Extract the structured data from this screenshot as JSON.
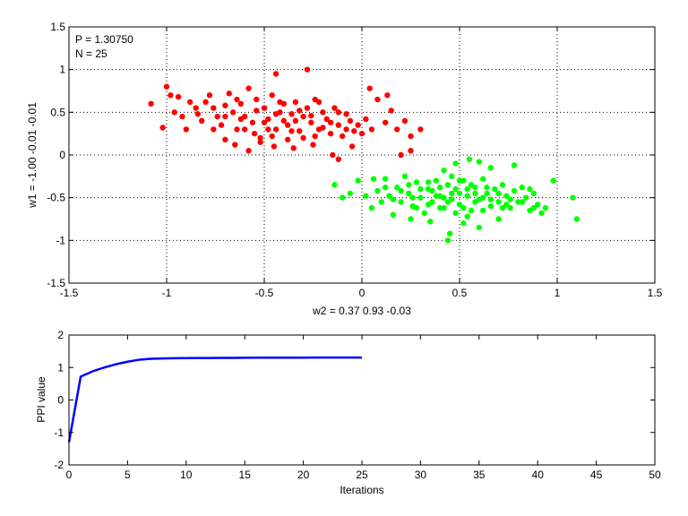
{
  "chart_data": [
    {
      "type": "scatter",
      "xlabel": "w2 = 0.37  0.93  -0.03",
      "ylabel": "w1 = -1.00  -0.01  -0.01",
      "xlim": [
        -1.5,
        1.5
      ],
      "ylim": [
        -1.5,
        1.5
      ],
      "xticks": [
        -1.5,
        -1,
        -0.5,
        0,
        0.5,
        1,
        1.5
      ],
      "yticks": [
        -1.5,
        -1,
        -0.5,
        0,
        0.5,
        1,
        1.5
      ],
      "xtick_labels": [
        "-1.5",
        "-1",
        "-0.5",
        "0",
        "0.5",
        "1",
        "1.5"
      ],
      "ytick_labels": [
        "-1.5",
        "-1",
        "-0.5",
        "0",
        "0.5",
        "1",
        "1.5"
      ],
      "grid": "dotted",
      "annotations": [
        "P = 1.30750",
        "N = 25"
      ],
      "series": [
        {
          "color": "#ff0000",
          "marker": "filled-circle",
          "points": [
            [
              -1.08,
              0.6
            ],
            [
              -1.02,
              0.32
            ],
            [
              -1.0,
              0.8
            ],
            [
              -0.98,
              0.7
            ],
            [
              -0.96,
              0.5
            ],
            [
              -0.94,
              0.68
            ],
            [
              -0.92,
              0.45
            ],
            [
              -0.9,
              0.3
            ],
            [
              -0.88,
              0.62
            ],
            [
              -0.85,
              0.55
            ],
            [
              -0.82,
              0.4
            ],
            [
              -0.8,
              0.62
            ],
            [
              -0.78,
              0.7
            ],
            [
              -0.76,
              0.55
            ],
            [
              -0.74,
              0.45
            ],
            [
              -0.72,
              0.35
            ],
            [
              -0.7,
              0.58
            ],
            [
              -0.68,
              0.72
            ],
            [
              -0.66,
              0.5
            ],
            [
              -0.64,
              0.3
            ],
            [
              -0.62,
              0.6
            ],
            [
              -0.6,
              0.45
            ],
            [
              -0.58,
              0.78
            ],
            [
              -0.56,
              0.38
            ],
            [
              -0.54,
              0.65
            ],
            [
              -0.52,
              0.2
            ],
            [
              -0.5,
              0.55
            ],
            [
              -0.48,
              0.42
            ],
            [
              -0.46,
              0.7
            ],
            [
              -0.44,
              0.3
            ],
            [
              -0.42,
              0.5
            ],
            [
              -0.4,
              0.6
            ],
            [
              -0.38,
              0.35
            ],
            [
              -0.36,
              0.48
            ],
            [
              -0.34,
              0.62
            ],
            [
              -0.32,
              0.28
            ],
            [
              -0.3,
              0.45
            ],
            [
              -0.28,
              0.55
            ],
            [
              -0.26,
              0.38
            ],
            [
              -0.24,
              0.65
            ],
            [
              -0.22,
              0.3
            ],
            [
              -0.2,
              0.5
            ],
            [
              -0.18,
              0.42
            ],
            [
              -0.16,
              0.25
            ],
            [
              -0.14,
              0.55
            ],
            [
              -0.12,
              0.35
            ],
            [
              -0.1,
              0.22
            ],
            [
              -0.08,
              0.48
            ],
            [
              -0.06,
              0.4
            ],
            [
              -0.04,
              0.28
            ],
            [
              -0.02,
              0.35
            ],
            [
              0.0,
              0.25
            ],
            [
              0.02,
              0.42
            ],
            [
              0.05,
              0.3
            ],
            [
              0.08,
              0.65
            ],
            [
              0.12,
              0.38
            ],
            [
              0.15,
              0.52
            ],
            [
              0.18,
              0.3
            ],
            [
              0.22,
              0.4
            ],
            [
              0.25,
              0.22
            ],
            [
              0.3,
              0.3
            ],
            [
              -0.65,
              0.12
            ],
            [
              -0.58,
              0.05
            ],
            [
              -0.52,
              0.15
            ],
            [
              -0.45,
              0.1
            ],
            [
              -0.35,
              0.08
            ],
            [
              -0.25,
              0.12
            ],
            [
              -0.15,
              0.0
            ],
            [
              -0.05,
              0.1
            ],
            [
              -0.44,
              0.95
            ],
            [
              -0.28,
              1.0
            ],
            [
              -0.7,
              0.18
            ],
            [
              0.04,
              0.78
            ],
            [
              0.13,
              0.7
            ],
            [
              0.25,
              0.05
            ],
            [
              0.2,
              0.0
            ],
            [
              -0.55,
              0.25
            ],
            [
              -0.48,
              0.3
            ],
            [
              -0.62,
              0.42
            ],
            [
              -0.4,
              0.4
            ],
            [
              -0.32,
              0.52
            ],
            [
              -0.2,
              0.32
            ],
            [
              -0.3,
              0.2
            ],
            [
              -0.5,
              0.38
            ],
            [
              -0.36,
              0.28
            ],
            [
              -0.44,
              0.48
            ],
            [
              -0.26,
              0.46
            ],
            [
              -0.16,
              0.38
            ],
            [
              -0.84,
              0.48
            ],
            [
              -0.76,
              0.3
            ],
            [
              -0.64,
              0.65
            ],
            [
              -0.54,
              0.52
            ],
            [
              -0.42,
              0.62
            ],
            [
              -0.34,
              0.4
            ],
            [
              -0.24,
              0.22
            ],
            [
              -0.12,
              0.5
            ],
            [
              -0.08,
              0.3
            ],
            [
              -0.6,
              0.3
            ],
            [
              -0.46,
              0.22
            ],
            [
              -0.38,
              0.18
            ],
            [
              -0.22,
              0.62
            ],
            [
              -0.7,
              0.45
            ],
            [
              -0.12,
              -0.05
            ]
          ]
        },
        {
          "color": "#00ff00",
          "marker": "filled-circle",
          "points": [
            [
              -0.14,
              -0.35
            ],
            [
              -0.1,
              -0.5
            ],
            [
              -0.06,
              -0.45
            ],
            [
              -0.02,
              -0.3
            ],
            [
              0.02,
              -0.48
            ],
            [
              0.05,
              -0.62
            ],
            [
              0.08,
              -0.42
            ],
            [
              0.1,
              -0.55
            ],
            [
              0.12,
              -0.28
            ],
            [
              0.14,
              -0.48
            ],
            [
              0.16,
              -0.7
            ],
            [
              0.18,
              -0.38
            ],
            [
              0.2,
              -0.55
            ],
            [
              0.22,
              -0.25
            ],
            [
              0.24,
              -0.45
            ],
            [
              0.26,
              -0.6
            ],
            [
              0.28,
              -0.32
            ],
            [
              0.3,
              -0.5
            ],
            [
              0.32,
              -0.68
            ],
            [
              0.34,
              -0.4
            ],
            [
              0.36,
              -0.55
            ],
            [
              0.38,
              -0.3
            ],
            [
              0.4,
              -0.48
            ],
            [
              0.42,
              -0.62
            ],
            [
              0.44,
              -0.35
            ],
            [
              0.46,
              -0.52
            ],
            [
              0.48,
              -0.4
            ],
            [
              0.5,
              -0.58
            ],
            [
              0.52,
              -0.3
            ],
            [
              0.54,
              -0.48
            ],
            [
              0.56,
              -0.65
            ],
            [
              0.58,
              -0.38
            ],
            [
              0.6,
              -0.52
            ],
            [
              0.62,
              -0.28
            ],
            [
              0.64,
              -0.45
            ],
            [
              0.66,
              -0.6
            ],
            [
              0.68,
              -0.4
            ],
            [
              0.7,
              -0.55
            ],
            [
              0.72,
              -0.35
            ],
            [
              0.74,
              -0.48
            ],
            [
              0.76,
              -0.62
            ],
            [
              0.78,
              -0.42
            ],
            [
              0.8,
              -0.55
            ],
            [
              0.82,
              -0.38
            ],
            [
              0.84,
              -0.5
            ],
            [
              0.86,
              -0.65
            ],
            [
              0.88,
              -0.45
            ],
            [
              0.9,
              -0.58
            ],
            [
              0.92,
              -0.68
            ],
            [
              0.94,
              -0.62
            ],
            [
              0.98,
              -0.3
            ],
            [
              1.08,
              -0.5
            ],
            [
              1.1,
              -0.75
            ],
            [
              0.44,
              -1.0
            ],
            [
              0.45,
              -0.92
            ],
            [
              0.52,
              -0.8
            ],
            [
              0.6,
              -0.85
            ],
            [
              0.7,
              -0.75
            ],
            [
              0.35,
              -0.78
            ],
            [
              0.25,
              -0.75
            ],
            [
              0.42,
              -0.18
            ],
            [
              0.48,
              -0.1
            ],
            [
              0.55,
              -0.05
            ],
            [
              0.6,
              -0.08
            ],
            [
              0.66,
              -0.15
            ],
            [
              0.78,
              -0.12
            ],
            [
              0.46,
              -0.45
            ],
            [
              0.5,
              -0.45
            ],
            [
              0.54,
              -0.4
            ],
            [
              0.58,
              -0.55
            ],
            [
              0.62,
              -0.5
            ],
            [
              0.38,
              -0.48
            ],
            [
              0.34,
              -0.58
            ],
            [
              0.3,
              -0.4
            ],
            [
              0.26,
              -0.5
            ],
            [
              0.56,
              -0.35
            ],
            [
              0.64,
              -0.38
            ],
            [
              0.7,
              -0.45
            ],
            [
              0.76,
              -0.52
            ],
            [
              0.82,
              -0.55
            ],
            [
              0.48,
              -0.68
            ],
            [
              0.4,
              -0.38
            ],
            [
              0.52,
              -0.62
            ],
            [
              0.44,
              -0.55
            ],
            [
              0.36,
              -0.42
            ],
            [
              0.28,
              -0.62
            ],
            [
              0.2,
              -0.42
            ],
            [
              0.58,
              -0.45
            ],
            [
              0.66,
              -0.52
            ],
            [
              0.74,
              -0.58
            ],
            [
              0.86,
              -0.4
            ],
            [
              0.88,
              -0.62
            ],
            [
              0.5,
              -0.3
            ],
            [
              0.42,
              -0.5
            ],
            [
              0.34,
              -0.32
            ],
            [
              0.24,
              -0.35
            ],
            [
              0.16,
              -0.52
            ],
            [
              0.12,
              -0.38
            ],
            [
              0.06,
              -0.28
            ],
            [
              0.62,
              -0.65
            ],
            [
              0.54,
              -0.72
            ],
            [
              0.72,
              -0.62
            ],
            [
              0.46,
              -0.25
            ],
            [
              0.4,
              -0.62
            ]
          ]
        }
      ]
    },
    {
      "type": "line",
      "xlabel": "Iterations",
      "ylabel": "PPI value",
      "xlim": [
        0,
        50
      ],
      "ylim": [
        -2,
        2
      ],
      "xticks": [
        0,
        5,
        10,
        15,
        20,
        25,
        30,
        35,
        40,
        45,
        50
      ],
      "yticks": [
        -2,
        -1,
        0,
        1,
        2
      ],
      "xtick_labels": [
        "0",
        "5",
        "10",
        "15",
        "20",
        "25",
        "30",
        "35",
        "40",
        "45",
        "50"
      ],
      "ytick_labels": [
        "-2",
        "-1",
        "0",
        "1",
        "2"
      ],
      "grid": "off",
      "series": [
        {
          "color": "#0000ff",
          "x": [
            0,
            1,
            2,
            3,
            4,
            5,
            6,
            7,
            8,
            9,
            10,
            11,
            12,
            13,
            14,
            15,
            16,
            17,
            18,
            19,
            20,
            21,
            22,
            23,
            24,
            25
          ],
          "y": [
            -1.3,
            0.72,
            0.88,
            1.0,
            1.1,
            1.18,
            1.24,
            1.27,
            1.28,
            1.285,
            1.29,
            1.292,
            1.294,
            1.296,
            1.298,
            1.3,
            1.302,
            1.303,
            1.304,
            1.304,
            1.305,
            1.306,
            1.306,
            1.307,
            1.307,
            1.3075
          ]
        }
      ]
    }
  ]
}
